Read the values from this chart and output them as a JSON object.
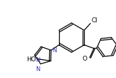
{
  "bg_color": "#ffffff",
  "line_color": "#000000",
  "ring_color": "#3030b0",
  "text_color": "#000000",
  "label_N": "N",
  "label_O": "O",
  "label_Cl": "Cl",
  "label_HO": "HO",
  "figsize": [
    1.67,
    1.13
  ],
  "dpi": 100,
  "lw": 0.9
}
